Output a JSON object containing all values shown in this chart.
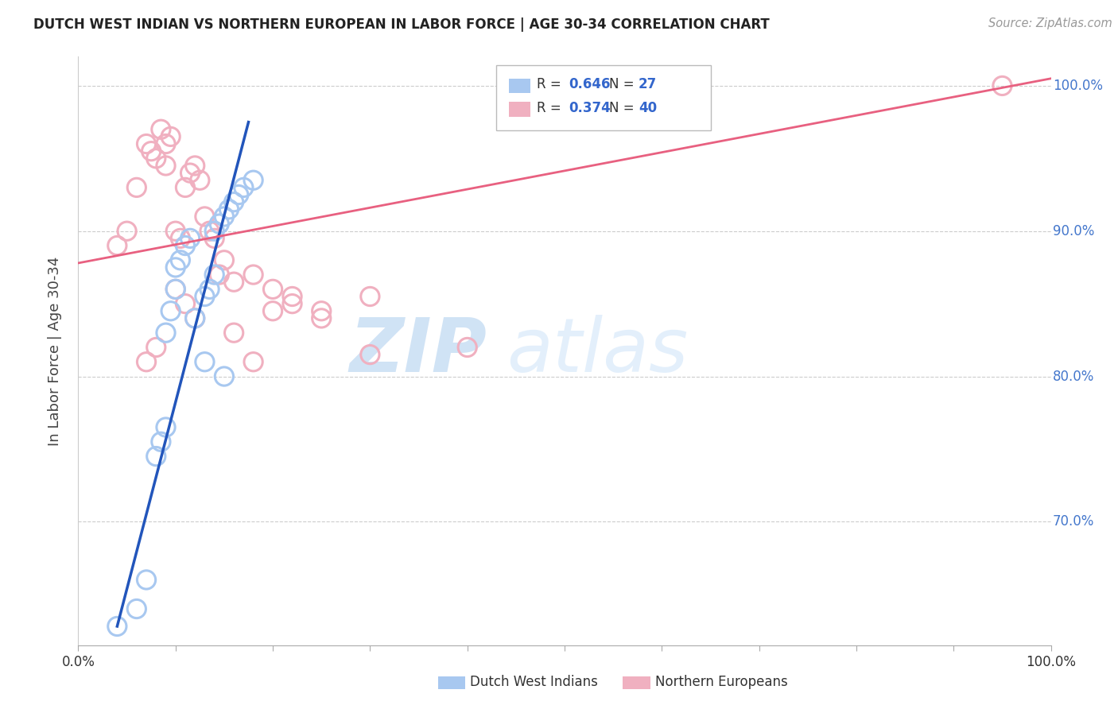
{
  "title": "DUTCH WEST INDIAN VS NORTHERN EUROPEAN IN LABOR FORCE | AGE 30-34 CORRELATION CHART",
  "source": "Source: ZipAtlas.com",
  "ylabel": "In Labor Force | Age 30-34",
  "xlim": [
    0.0,
    1.0
  ],
  "ylim": [
    0.615,
    1.02
  ],
  "blue_R": 0.646,
  "blue_N": 27,
  "pink_R": 0.374,
  "pink_N": 40,
  "blue_color": "#a8c8f0",
  "pink_color": "#f0b0c0",
  "blue_line_color": "#2255bb",
  "pink_line_color": "#e86080",
  "watermark_zip": "ZIP",
  "watermark_atlas": "atlas",
  "blue_scatter_x": [
    0.04,
    0.06,
    0.07,
    0.08,
    0.085,
    0.09,
    0.09,
    0.095,
    0.1,
    0.1,
    0.105,
    0.11,
    0.115,
    0.12,
    0.13,
    0.135,
    0.14,
    0.14,
    0.145,
    0.15,
    0.155,
    0.16,
    0.165,
    0.17,
    0.18,
    0.13,
    0.15
  ],
  "blue_scatter_y": [
    0.628,
    0.64,
    0.66,
    0.745,
    0.755,
    0.765,
    0.83,
    0.845,
    0.86,
    0.875,
    0.88,
    0.89,
    0.895,
    0.84,
    0.855,
    0.86,
    0.87,
    0.9,
    0.905,
    0.91,
    0.915,
    0.92,
    0.925,
    0.93,
    0.935,
    0.81,
    0.8
  ],
  "pink_scatter_x": [
    0.04,
    0.05,
    0.06,
    0.07,
    0.075,
    0.08,
    0.085,
    0.09,
    0.09,
    0.095,
    0.1,
    0.105,
    0.11,
    0.115,
    0.12,
    0.125,
    0.13,
    0.135,
    0.14,
    0.145,
    0.15,
    0.16,
    0.18,
    0.2,
    0.22,
    0.25,
    0.3,
    0.95,
    0.07,
    0.08,
    0.1,
    0.11,
    0.12,
    0.16,
    0.18,
    0.2,
    0.22,
    0.25,
    0.3,
    0.4
  ],
  "pink_scatter_y": [
    0.89,
    0.9,
    0.93,
    0.96,
    0.955,
    0.95,
    0.97,
    0.945,
    0.96,
    0.965,
    0.9,
    0.895,
    0.93,
    0.94,
    0.945,
    0.935,
    0.91,
    0.9,
    0.895,
    0.87,
    0.88,
    0.865,
    0.87,
    0.86,
    0.855,
    0.845,
    0.855,
    1.0,
    0.81,
    0.82,
    0.86,
    0.85,
    0.84,
    0.83,
    0.81,
    0.845,
    0.85,
    0.84,
    0.815,
    0.82
  ],
  "blue_line_x0": 0.04,
  "blue_line_y0": 0.628,
  "blue_line_x1": 0.175,
  "blue_line_y1": 0.975,
  "pink_line_x0": 0.0,
  "pink_line_y0": 0.878,
  "pink_line_x1": 1.0,
  "pink_line_y1": 1.005
}
